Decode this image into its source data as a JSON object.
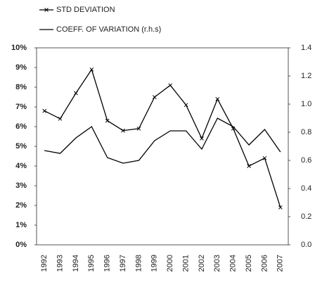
{
  "chart_data": {
    "type": "line",
    "categories": [
      "1992",
      "1993",
      "1994",
      "1995",
      "1996",
      "1997",
      "1998",
      "1999",
      "2000",
      "2001",
      "2002",
      "2003",
      "2004",
      "2005",
      "2006",
      "2007"
    ],
    "series": [
      {
        "name": "STD DEVIATION",
        "color": "#000000",
        "marker": "x",
        "values": [
          6.8,
          6.4,
          7.7,
          8.9,
          6.3,
          5.8,
          5.9,
          7.5,
          8.1,
          7.1,
          5.4,
          7.4,
          5.9,
          4.0,
          4.4,
          1.9
        ]
      },
      {
        "name": "COEFF. OF VARIATION (r.h.s)",
        "color": "#000000",
        "axis": "y2",
        "values": [
          0.67,
          0.65,
          0.76,
          0.84,
          0.62,
          0.58,
          0.6,
          0.74,
          0.81,
          0.81,
          0.68,
          0.9,
          0.84,
          0.71,
          0.82,
          0.66
        ]
      }
    ],
    "ylim": [
      0,
      10
    ],
    "yticks": [
      {
        "value": 0,
        "label": "0%"
      },
      {
        "value": 1,
        "label": "1%"
      },
      {
        "value": 2,
        "label": "2%"
      },
      {
        "value": 3,
        "label": "3%"
      },
      {
        "value": 4,
        "label": "4%"
      },
      {
        "value": 5,
        "label": "5%"
      },
      {
        "value": 6,
        "label": "6%"
      },
      {
        "value": 7,
        "label": "7%"
      },
      {
        "value": 8,
        "label": "8%"
      },
      {
        "value": 9,
        "label": "9%"
      },
      {
        "value": 10,
        "label": "10%"
      }
    ],
    "y2lim": [
      0,
      1.4
    ],
    "y2ticks": [
      {
        "value": 0,
        "label": "0.0"
      },
      0.2,
      0.4,
      0.6,
      0.8,
      {
        "value": 1,
        "label": "1.0"
      },
      1.2,
      1.4
    ],
    "grid": false
  }
}
